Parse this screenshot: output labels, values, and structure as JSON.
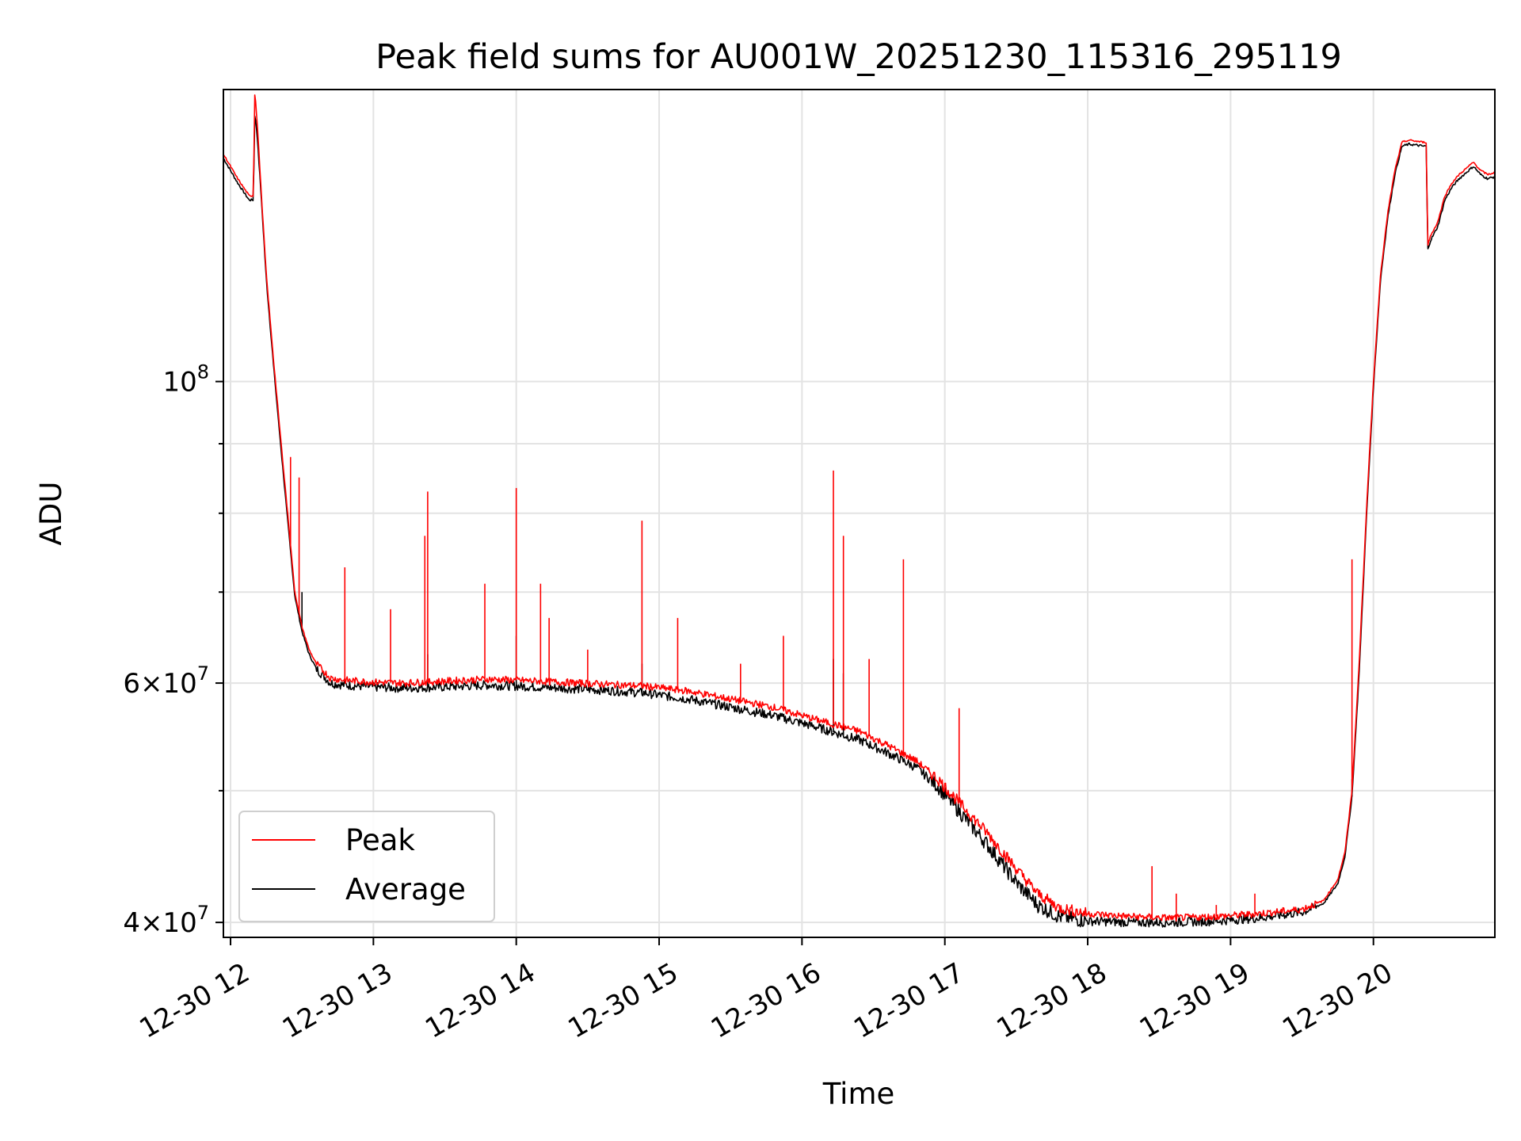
{
  "chart_data": {
    "type": "line",
    "title": "Peak field sums for AU001W_20251230_115316_295119",
    "xlabel": "Time",
    "ylabel": "ADU",
    "yscale": "log",
    "ylim": [
      39000000,
      164000000
    ],
    "xlim_hours": [
      11.95,
      20.85
    ],
    "grid": true,
    "legend_position": "lower-left",
    "x_ticks": [
      {
        "hour": 12,
        "label": "12-30 12"
      },
      {
        "hour": 13,
        "label": "12-30 13"
      },
      {
        "hour": 14,
        "label": "12-30 14"
      },
      {
        "hour": 15,
        "label": "12-30 15"
      },
      {
        "hour": 16,
        "label": "12-30 16"
      },
      {
        "hour": 17,
        "label": "12-30 17"
      },
      {
        "hour": 18,
        "label": "12-30 18"
      },
      {
        "hour": 19,
        "label": "12-30 19"
      },
      {
        "hour": 20,
        "label": "12-30 20"
      }
    ],
    "y_major_ticks": [
      {
        "value": 40000000,
        "mantissa": "4",
        "exponent": "7"
      },
      {
        "value": 60000000,
        "mantissa": "6",
        "exponent": "7"
      },
      {
        "value": 100000000,
        "mantissa": "",
        "exponent": "8"
      }
    ],
    "y_minor_ticks": [
      50000000,
      70000000,
      80000000,
      90000000
    ],
    "series": [
      {
        "name": "Peak",
        "color": "#ff0000",
        "x_hours": [
          11.95,
          12.05,
          12.13,
          12.16,
          12.17,
          12.19,
          12.22,
          12.25,
          12.3,
          12.35,
          12.4,
          12.45,
          12.5,
          12.55,
          12.6,
          12.7,
          12.8,
          12.9,
          13.0,
          13.2,
          13.5,
          13.8,
          14.0,
          14.3,
          14.6,
          14.9,
          15.2,
          15.5,
          15.8,
          16.1,
          16.4,
          16.6,
          16.8,
          16.95,
          17.1,
          17.3,
          17.5,
          17.65,
          17.8,
          18.0,
          18.3,
          18.6,
          18.9,
          19.2,
          19.5,
          19.65,
          19.75,
          19.8,
          19.85,
          19.9,
          19.95,
          20.0,
          20.05,
          20.1,
          20.15,
          20.2,
          20.25,
          20.35,
          20.37,
          20.38,
          20.4,
          20.45,
          20.5,
          20.55,
          20.6,
          20.65,
          20.7,
          20.75,
          20.8,
          20.85
        ],
        "values": [
          147000000,
          141000000,
          137000000,
          137000000,
          164000000,
          153000000,
          135000000,
          120000000,
          104000000,
          91000000,
          80000000,
          70000000,
          66000000,
          63500000,
          62000000,
          60500000,
          60300000,
          60200000,
          60100000,
          60000000,
          60200000,
          60400000,
          60300000,
          60100000,
          59900000,
          59700000,
          59200000,
          58400000,
          57600000,
          56400000,
          55300000,
          54000000,
          52600000,
          51000000,
          49000000,
          46500000,
          43800000,
          42000000,
          41000000,
          40600000,
          40400000,
          40300000,
          40400000,
          40600000,
          40900000,
          41500000,
          43000000,
          45000000,
          50000000,
          62000000,
          80000000,
          100000000,
          120000000,
          133000000,
          143000000,
          150000000,
          150500000,
          150000000,
          150000000,
          126000000,
          128000000,
          131000000,
          137000000,
          140000000,
          142000000,
          143500000,
          145000000,
          143000000,
          142000000,
          142500000
        ],
        "spikes": [
          [
            12.17,
            164000000
          ],
          [
            12.42,
            88000000
          ],
          [
            12.48,
            85000000
          ],
          [
            12.8,
            73000000
          ],
          [
            13.12,
            68000000
          ],
          [
            13.36,
            77000000
          ],
          [
            13.38,
            83000000
          ],
          [
            13.78,
            71000000
          ],
          [
            14.0,
            83500000
          ],
          [
            14.17,
            71000000
          ],
          [
            14.23,
            67000000
          ],
          [
            14.5,
            63500000
          ],
          [
            14.88,
            79000000
          ],
          [
            15.13,
            67000000
          ],
          [
            15.57,
            62000000
          ],
          [
            15.87,
            65000000
          ],
          [
            16.22,
            86000000
          ],
          [
            16.29,
            77000000
          ],
          [
            16.47,
            62500000
          ],
          [
            16.71,
            74000000
          ],
          [
            17.1,
            57500000
          ],
          [
            18.45,
            44000000
          ],
          [
            18.62,
            42000000
          ],
          [
            18.9,
            41200000
          ],
          [
            19.17,
            42000000
          ],
          [
            19.85,
            74000000
          ]
        ]
      },
      {
        "name": "Average",
        "color": "#000000",
        "x_hours": [
          11.95,
          12.05,
          12.13,
          12.16,
          12.17,
          12.19,
          12.22,
          12.25,
          12.3,
          12.35,
          12.4,
          12.45,
          12.5,
          12.55,
          12.6,
          12.7,
          12.8,
          12.9,
          13.0,
          13.2,
          13.5,
          13.8,
          14.0,
          14.3,
          14.6,
          14.9,
          15.2,
          15.5,
          15.8,
          16.1,
          16.4,
          16.6,
          16.8,
          16.95,
          17.1,
          17.3,
          17.5,
          17.65,
          17.8,
          18.0,
          18.3,
          18.6,
          18.9,
          19.2,
          19.5,
          19.65,
          19.75,
          19.8,
          19.85,
          19.9,
          19.95,
          20.0,
          20.05,
          20.1,
          20.15,
          20.2,
          20.25,
          20.35,
          20.37,
          20.38,
          20.4,
          20.45,
          20.5,
          20.55,
          20.6,
          20.65,
          20.7,
          20.75,
          20.8,
          20.85
        ],
        "values": [
          146000000,
          140000000,
          136000000,
          136000000,
          158000000,
          150000000,
          134000000,
          119000000,
          103000000,
          90000000,
          79000000,
          69500000,
          65500000,
          63000000,
          61500000,
          60000000,
          59800000,
          59700000,
          59600000,
          59500000,
          59600000,
          59800000,
          59700000,
          59500000,
          59300000,
          59000000,
          58400000,
          57600000,
          56800000,
          55700000,
          54500000,
          53300000,
          52000000,
          50400000,
          48300000,
          45600000,
          42800000,
          41200000,
          40400000,
          40100000,
          40000000,
          40000000,
          40100000,
          40300000,
          40700000,
          41300000,
          42700000,
          44700000,
          49500000,
          61000000,
          79000000,
          99000000,
          119000000,
          132000000,
          142000000,
          149000000,
          149500000,
          149000000,
          149000000,
          125000000,
          127000000,
          130000000,
          136000000,
          139000000,
          141000000,
          142500000,
          144000000,
          142000000,
          141000000,
          141500000
        ],
        "spikes": [
          [
            12.17,
            158000000
          ],
          [
            12.5,
            70000000
          ],
          [
            13.38,
            63000000
          ],
          [
            14.0,
            65000000
          ],
          [
            14.88,
            62000000
          ],
          [
            16.22,
            62500000
          ],
          [
            16.29,
            61000000
          ],
          [
            19.85,
            51000000
          ]
        ]
      }
    ]
  }
}
